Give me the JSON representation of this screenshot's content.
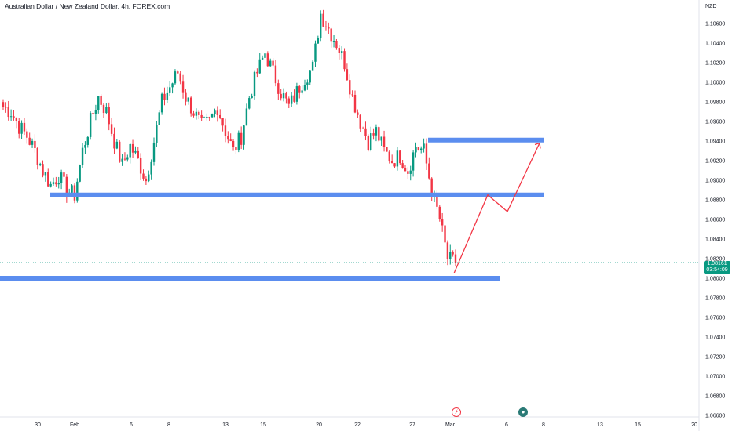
{
  "title": "Australian Dollar / New Zealand Dollar, 4h, FOREX.com",
  "currency_label": "NZD",
  "last_price": {
    "value": "1.08161",
    "countdown": "03:54:09",
    "color": "#089981"
  },
  "colors": {
    "up": "#089981",
    "down": "#f23645",
    "zone": "#5b8def",
    "projection": "#f23645"
  },
  "icons": [
    "lightning-icon",
    "calendar-events-icon"
  ],
  "chart_data": {
    "type": "candlestick",
    "title": "Australian Dollar / New Zealand Dollar, 4h, FOREX.com",
    "y_axis": {
      "side": "right",
      "ylim": [
        1.066,
        1.111
      ],
      "ticks": [
        "1.10600",
        "1.10400",
        "1.10200",
        "1.10000",
        "1.09800",
        "1.09600",
        "1.09400",
        "1.09200",
        "1.09000",
        "1.08800",
        "1.08600",
        "1.08400",
        "1.08200",
        "1.08000",
        "1.07800",
        "1.07600",
        "1.07400",
        "1.07200",
        "1.07000",
        "1.06800",
        "1.06600"
      ]
    },
    "x_axis": {
      "labels": [
        "30",
        "Feb",
        "6",
        "8",
        "13",
        "15",
        "20",
        "22",
        "27",
        "Mar",
        "6",
        "8",
        "13",
        "15",
        "20"
      ]
    },
    "candle_anchors": [
      1.0975,
      1.097,
      1.0955,
      1.0945,
      1.093,
      1.091,
      1.0895,
      1.0905,
      1.089,
      1.0885,
      1.093,
      1.096,
      1.0985,
      1.097,
      1.094,
      1.0915,
      1.0935,
      1.092,
      1.09,
      1.094,
      1.098,
      1.0995,
      1.101,
      1.0985,
      1.097,
      1.0955,
      1.096,
      1.0975,
      1.095,
      1.093,
      1.0945,
      1.0985,
      1.101,
      1.103,
      1.101,
      1.099,
      1.0975,
      1.099,
      1.1005,
      1.1015,
      1.107,
      1.1055,
      1.104,
      1.102,
      1.0985,
      1.096,
      1.094,
      1.095,
      1.093,
      1.092,
      1.0925,
      1.091,
      1.0935,
      1.093,
      1.089,
      1.086,
      1.082
    ],
    "last_close": 1.08161,
    "zones": [
      {
        "price": 1.0941,
        "from": "27",
        "to": "8"
      },
      {
        "price": 1.0885,
        "from": "30",
        "to": "8"
      },
      {
        "price": 1.08,
        "from": "start",
        "to": "6"
      }
    ],
    "projection_path": [
      1.0805,
      1.0885,
      1.0868,
      1.0938
    ],
    "grid": false,
    "legend": "none"
  }
}
